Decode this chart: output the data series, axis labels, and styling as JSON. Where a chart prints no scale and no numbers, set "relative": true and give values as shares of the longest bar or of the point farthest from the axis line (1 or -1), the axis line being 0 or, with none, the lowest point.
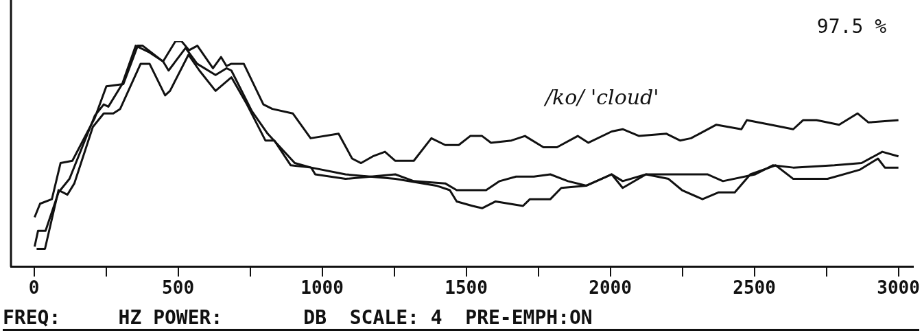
{
  "chart_data": {
    "type": "line",
    "relative": true,
    "marker": "none",
    "xlim": [
      -80,
      3050
    ],
    "xticks": [
      0,
      {
        "value": 250,
        "label": null
      },
      500,
      {
        "value": 750,
        "label": null
      },
      1000,
      {
        "value": 1250,
        "label": null
      },
      1500,
      {
        "value": 1750,
        "label": null
      },
      2000,
      {
        "value": 2250,
        "label": null
      },
      2500,
      {
        "value": 2750,
        "label": null
      },
      3000
    ],
    "annotations": [
      "97.5 %",
      "/ko/ 'cloud'",
      "FREQ:     HZ POWER:       DB  SCALE: 4  PRE-EMPH:ON"
    ],
    "series": [
      {
        "color": "#111111",
        "x": [
          2,
          21,
          62,
          92,
          133,
          211,
          251,
          310,
          360,
          377,
          448,
          491,
          512,
          538,
          567,
          621,
          649,
          668,
          685,
          728,
          796,
          827,
          898,
          960,
          1057,
          1104,
          1135,
          1176,
          1218,
          1254,
          1318,
          1379,
          1427,
          1474,
          1514,
          1555,
          1586,
          1657,
          1704,
          1768,
          1815,
          1887,
          1924,
          2005,
          2043,
          2100,
          2195,
          2242,
          2280,
          2368,
          2455,
          2474,
          2557,
          2635,
          2669,
          2716,
          2794,
          2858,
          2896,
          3000
        ],
        "values": [
          0.22,
          0.28,
          0.3,
          0.46,
          0.47,
          0.66,
          0.8,
          0.81,
          0.98,
          0.98,
          0.91,
          1,
          1,
          0.96,
          0.98,
          0.88,
          0.93,
          0.89,
          0.9,
          0.9,
          0.72,
          0.7,
          0.68,
          0.57,
          0.59,
          0.48,
          0.46,
          0.49,
          0.51,
          0.47,
          0.47,
          0.57,
          0.54,
          0.54,
          0.58,
          0.58,
          0.55,
          0.56,
          0.58,
          0.53,
          0.53,
          0.58,
          0.55,
          0.6,
          0.61,
          0.58,
          0.59,
          0.56,
          0.57,
          0.63,
          0.61,
          0.65,
          0.63,
          0.61,
          0.65,
          0.65,
          0.63,
          0.68,
          0.64,
          0.65
        ]
      },
      {
        "color": "#111111",
        "x": [
          9,
          38,
          85,
          116,
          140,
          204,
          242,
          275,
          299,
          370,
          401,
          455,
          472,
          536,
          574,
          630,
          685,
          739,
          803,
          834,
          891,
          962,
          976,
          1081,
          1254,
          1318,
          1427,
          1467,
          1569,
          1616,
          1673,
          1735,
          1792,
          1853,
          1917,
          2005,
          2043,
          2124,
          2289,
          2337,
          2391,
          2503,
          2564,
          2635,
          2778,
          2872,
          2944,
          3000
        ],
        "values": [
          0.08,
          0.08,
          0.34,
          0.32,
          0.37,
          0.62,
          0.68,
          0.68,
          0.7,
          0.9,
          0.9,
          0.76,
          0.78,
          0.94,
          0.87,
          0.78,
          0.84,
          0.72,
          0.56,
          0.56,
          0.45,
          0.44,
          0.41,
          0.39,
          0.41,
          0.38,
          0.37,
          0.34,
          0.34,
          0.38,
          0.4,
          0.4,
          0.41,
          0.38,
          0.36,
          0.41,
          0.38,
          0.41,
          0.41,
          0.41,
          0.38,
          0.41,
          0.45,
          0.44,
          0.45,
          0.46,
          0.51,
          0.49
        ]
      },
      {
        "color": "#111111",
        "x": [
          2,
          14,
          40,
          85,
          123,
          211,
          242,
          258,
          306,
          353,
          401,
          448,
          467,
          526,
          566,
          630,
          668,
          685,
          756,
          811,
          905,
          962,
          1081,
          1254,
          1396,
          1443,
          1467,
          1522,
          1555,
          1602,
          1697,
          1721,
          1792,
          1830,
          1917,
          2005,
          2043,
          2124,
          2202,
          2249,
          2320,
          2375,
          2432,
          2486,
          2574,
          2635,
          2754,
          2865,
          2929,
          2953,
          3000
        ],
        "values": [
          0.09,
          0.16,
          0.16,
          0.33,
          0.39,
          0.67,
          0.72,
          0.71,
          0.81,
          0.98,
          0.95,
          0.91,
          0.87,
          0.97,
          0.9,
          0.85,
          0.88,
          0.87,
          0.69,
          0.59,
          0.46,
          0.44,
          0.41,
          0.39,
          0.36,
          0.34,
          0.29,
          0.27,
          0.26,
          0.29,
          0.27,
          0.3,
          0.3,
          0.35,
          0.36,
          0.41,
          0.35,
          0.41,
          0.39,
          0.34,
          0.3,
          0.33,
          0.33,
          0.41,
          0.45,
          0.39,
          0.39,
          0.43,
          0.48,
          0.44,
          0.44
        ]
      }
    ]
  }
}
